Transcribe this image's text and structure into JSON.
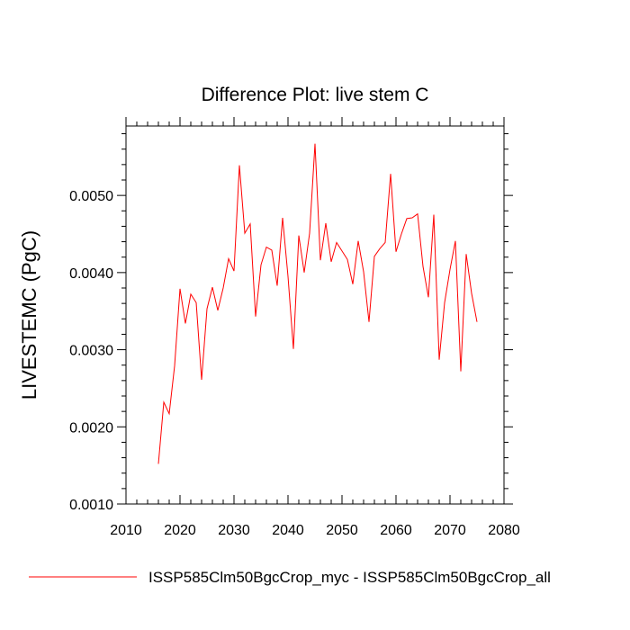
{
  "chart_data": {
    "type": "line",
    "title": "Difference Plot: live stem C",
    "xlabel": "",
    "ylabel": "LIVESTEMC  (PgC)",
    "xlim": [
      2010,
      2080
    ],
    "ylim": [
      0.001,
      0.0059
    ],
    "x_ticks": [
      2010,
      2020,
      2030,
      2040,
      2050,
      2060,
      2070,
      2080
    ],
    "x_tick_labels": [
      "2010",
      "2020",
      "2030",
      "2040",
      "2050",
      "2060",
      "2070",
      "2080"
    ],
    "y_ticks": [
      0.001,
      0.002,
      0.003,
      0.004,
      0.005
    ],
    "y_tick_labels": [
      "0.0010",
      "0.0020",
      "0.0030",
      "0.0040",
      "0.0050"
    ],
    "grid": false,
    "legend_position": "bottom",
    "series": [
      {
        "name": "ISSP585Clm50BgcCrop_myc - ISSP585Clm50BgcCrop_all",
        "color": "#ff0000",
        "x": [
          2016,
          2017,
          2018,
          2019,
          2020,
          2021,
          2022,
          2023,
          2024,
          2025,
          2026,
          2027,
          2028,
          2029,
          2030,
          2031,
          2032,
          2033,
          2034,
          2035,
          2036,
          2037,
          2038,
          2039,
          2040,
          2041,
          2042,
          2043,
          2044,
          2045,
          2046,
          2047,
          2048,
          2049,
          2050,
          2051,
          2052,
          2053,
          2054,
          2055,
          2056,
          2057,
          2058,
          2059,
          2060,
          2061,
          2062,
          2063,
          2064,
          2065,
          2066,
          2067,
          2068,
          2069,
          2070,
          2071,
          2072,
          2073,
          2074,
          2075
        ],
        "y": [
          0.00152,
          0.00232,
          0.00217,
          0.00279,
          0.00379,
          0.00334,
          0.00372,
          0.00361,
          0.00261,
          0.00353,
          0.00381,
          0.00351,
          0.0038,
          0.00418,
          0.00402,
          0.00539,
          0.00451,
          0.00463,
          0.00343,
          0.0041,
          0.00433,
          0.00429,
          0.00383,
          0.00471,
          0.00395,
          0.00301,
          0.00448,
          0.004,
          0.00451,
          0.00567,
          0.00416,
          0.00464,
          0.00414,
          0.00439,
          0.00428,
          0.00417,
          0.00385,
          0.00441,
          0.00401,
          0.00336,
          0.00421,
          0.00431,
          0.00439,
          0.00528,
          0.00427,
          0.0045,
          0.0047,
          0.00471,
          0.00476,
          0.00408,
          0.00368,
          0.00475,
          0.00287,
          0.00361,
          0.00404,
          0.00441,
          0.00272,
          0.00424,
          0.00373,
          0.00336
        ]
      }
    ]
  }
}
